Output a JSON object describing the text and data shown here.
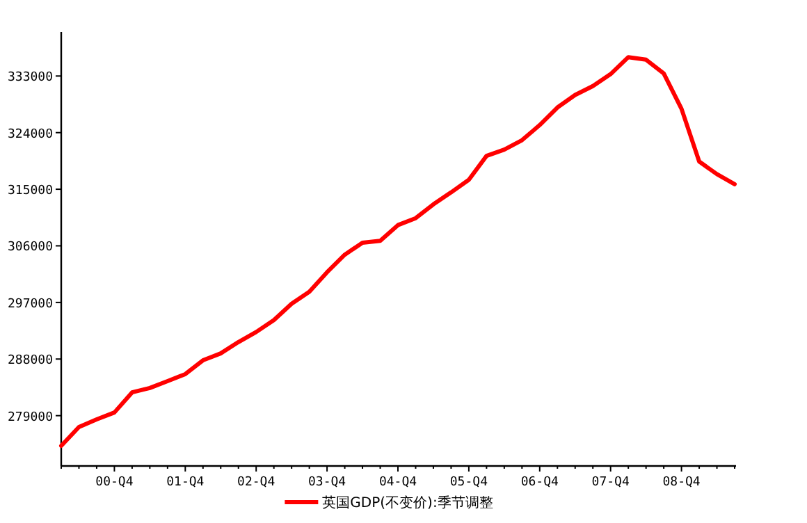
{
  "chart_data": {
    "type": "line",
    "categories": [
      null,
      null,
      null,
      "00-Q4",
      null,
      null,
      null,
      "01-Q4",
      null,
      null,
      null,
      "02-Q4",
      null,
      null,
      null,
      "03-Q4",
      null,
      null,
      null,
      "04-Q4",
      null,
      null,
      null,
      "05-Q4",
      null,
      null,
      null,
      "06-Q4",
      null,
      null,
      null,
      "07-Q4",
      null,
      null,
      null,
      "08-Q4",
      null,
      null,
      null
    ],
    "series": [
      {
        "name": "英国GDP(不变价):季节调整",
        "color": "#ff0000",
        "values": [
          274200,
          277200,
          278400,
          279500,
          282700,
          283400,
          284500,
          285600,
          287800,
          288900,
          290700,
          292300,
          294200,
          296800,
          298700,
          301800,
          304600,
          306500,
          306800,
          309300,
          310400,
          312600,
          314500,
          316500,
          320300,
          321300,
          322800,
          325200,
          328000,
          330000,
          331400,
          333300,
          336000,
          335600,
          333400,
          327800,
          319400,
          317400,
          315800
        ]
      }
    ],
    "ylim": [
      271000,
      340000
    ],
    "yticks": [
      279000,
      288000,
      297000,
      306000,
      315000,
      324000,
      333000
    ],
    "legend": "bottom"
  }
}
